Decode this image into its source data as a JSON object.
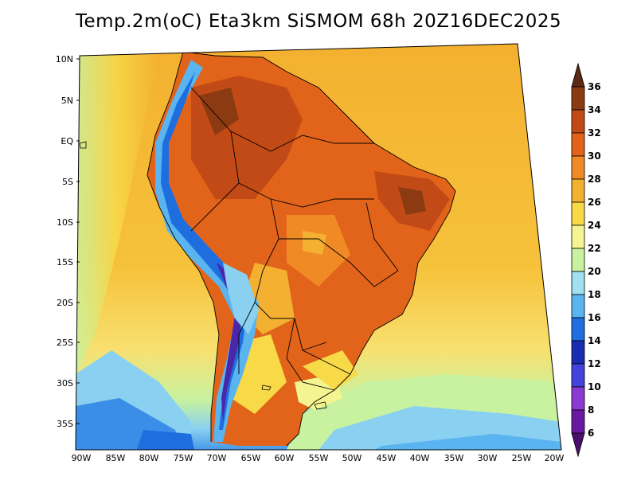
{
  "title": "Temp.2m(oC) Eta3km SiSMOM 68h 20Z16DEC2025",
  "map": {
    "variable": "2 m air temperature",
    "unit": "oC",
    "region": "South America / South Atlantic",
    "lat_labels": [
      "10N",
      "5N",
      "EQ",
      "5S",
      "10S",
      "15S",
      "20S",
      "25S",
      "30S",
      "35S"
    ],
    "lon_labels": [
      "90W",
      "85W",
      "80W",
      "75W",
      "70W",
      "65W",
      "60W",
      "55W",
      "50W",
      "45W",
      "40W",
      "35W",
      "30W",
      "25W",
      "20W"
    ]
  },
  "colorbar": {
    "levels": [
      "36",
      "34",
      "32",
      "30",
      "28",
      "26",
      "24",
      "22",
      "20",
      "18",
      "16",
      "14",
      "12",
      "10",
      "8",
      "6"
    ],
    "colors": [
      "#5a2a14",
      "#8c3a12",
      "#c24a16",
      "#e2641a",
      "#f08a24",
      "#f4b030",
      "#f8d948",
      "#f4f490",
      "#c8f2a0",
      "#a0e0f0",
      "#5ab4f0",
      "#1e6ee0",
      "#1a2cb0",
      "#4444dd",
      "#8a3ad0",
      "#6a1aa0",
      "#48106c"
    ]
  },
  "colors": {
    "ocean_warm": "#f4b030",
    "ocean_mid": "#f8d948",
    "land_hot": "#c24a16",
    "border": "#000000"
  }
}
